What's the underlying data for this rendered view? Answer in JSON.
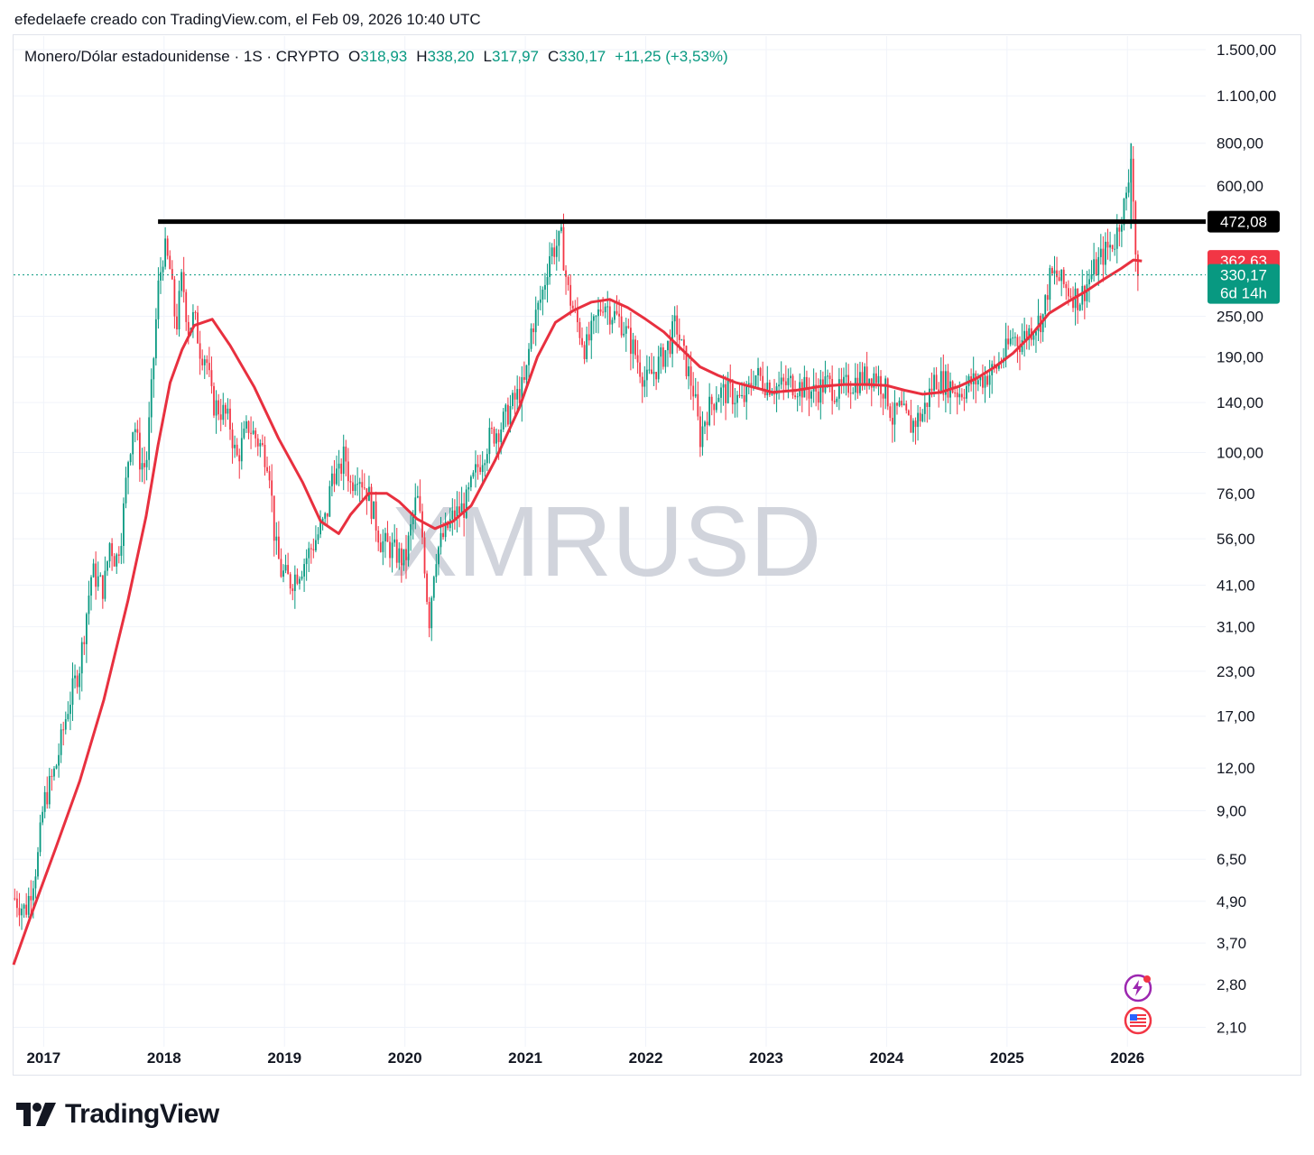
{
  "header": {
    "caption": "efedelaefe creado con TradingView.com, el Feb 09, 2026 10:40 UTC"
  },
  "legend": {
    "symbol": "Monero/Dólar estadounidense · 1S · CRYPTO",
    "open_label": "O",
    "open": "318,93",
    "high_label": "H",
    "high": "338,20",
    "low_label": "L",
    "low": "317,97",
    "close_label": "C",
    "close": "330,17",
    "change": "+11,25 (+3,53%)"
  },
  "watermark": "XMRUSD",
  "brand": {
    "name": "TradingView"
  },
  "colors": {
    "up": "#089981",
    "down": "#f23645",
    "ma": "#e8303f",
    "resistance": "#000000",
    "grid": "#f0f3fa",
    "watermark": "#d1d4dc"
  },
  "icons": [
    "lightning-icon",
    "us-flag-icon"
  ],
  "chart_data": {
    "type": "candlestick",
    "symbol": "XMRUSD",
    "interval": "1S",
    "scale": "log",
    "ylim": [
      1.9,
      1800
    ],
    "y_ticks": [
      "1.500,00",
      "1.100,00",
      "800,00",
      "600,00",
      "250,00",
      "190,00",
      "140,00",
      "100,00",
      "76,00",
      "56,00",
      "41,00",
      "31,00",
      "23,00",
      "17,00",
      "12,00",
      "9,00",
      "6,50",
      "4,90",
      "3,70",
      "2,80",
      "2,10"
    ],
    "y_tick_values": [
      1500,
      1100,
      800,
      600,
      250,
      190,
      140,
      100,
      76,
      56,
      41,
      31,
      23,
      17,
      12,
      9,
      6.5,
      4.9,
      3.7,
      2.8,
      2.1
    ],
    "x_ticks": [
      "2017",
      "2018",
      "2019",
      "2020",
      "2021",
      "2022",
      "2023",
      "2024",
      "2025",
      "2026"
    ],
    "x_tick_values": [
      2017.0,
      2018.0,
      2019.0,
      2020.0,
      2021.0,
      2022.0,
      2023.0,
      2024.0,
      2025.0,
      2026.0
    ],
    "xlim": [
      2016.75,
      2026.65
    ],
    "resistance_line": {
      "value": 472.08,
      "label": "472,08",
      "from": 2017.95,
      "to": 2026.65
    },
    "price_labels": [
      {
        "label": "362,63",
        "value": 362.63,
        "kind": "ma"
      },
      {
        "label": "330,17",
        "value": 330.17,
        "kind": "last",
        "sub": "6d 14h"
      }
    ],
    "last_price": 330.17,
    "price_path": [
      [
        2016.76,
        5.0
      ],
      [
        2016.85,
        4.6
      ],
      [
        2016.95,
        6.5
      ],
      [
        2017.0,
        9.5
      ],
      [
        2017.1,
        12
      ],
      [
        2017.2,
        18
      ],
      [
        2017.3,
        24
      ],
      [
        2017.4,
        45
      ],
      [
        2017.5,
        40
      ],
      [
        2017.55,
        55
      ],
      [
        2017.6,
        48
      ],
      [
        2017.65,
        60
      ],
      [
        2017.7,
        95
      ],
      [
        2017.75,
        125
      ],
      [
        2017.8,
        95
      ],
      [
        2017.85,
        90
      ],
      [
        2017.9,
        160
      ],
      [
        2017.95,
        300
      ],
      [
        2018.0,
        400
      ],
      [
        2018.05,
        340
      ],
      [
        2018.1,
        230
      ],
      [
        2018.15,
        330
      ],
      [
        2018.2,
        230
      ],
      [
        2018.25,
        250
      ],
      [
        2018.3,
        200
      ],
      [
        2018.35,
        190
      ],
      [
        2018.4,
        140
      ],
      [
        2018.5,
        130
      ],
      [
        2018.55,
        120
      ],
      [
        2018.6,
        95
      ],
      [
        2018.7,
        120
      ],
      [
        2018.8,
        105
      ],
      [
        2018.87,
        95
      ],
      [
        2018.92,
        55
      ],
      [
        2018.97,
        45
      ],
      [
        2019.05,
        42
      ],
      [
        2019.15,
        47
      ],
      [
        2019.25,
        55
      ],
      [
        2019.35,
        65
      ],
      [
        2019.4,
        90
      ],
      [
        2019.45,
        85
      ],
      [
        2019.5,
        100
      ],
      [
        2019.55,
        80
      ],
      [
        2019.6,
        90
      ],
      [
        2019.7,
        75
      ],
      [
        2019.8,
        55
      ],
      [
        2019.9,
        52
      ],
      [
        2020.0,
        48
      ],
      [
        2020.05,
        60
      ],
      [
        2020.1,
        75
      ],
      [
        2020.15,
        55
      ],
      [
        2020.2,
        32
      ],
      [
        2020.25,
        50
      ],
      [
        2020.3,
        55
      ],
      [
        2020.4,
        65
      ],
      [
        2020.5,
        70
      ],
      [
        2020.6,
        90
      ],
      [
        2020.7,
        110
      ],
      [
        2020.8,
        120
      ],
      [
        2020.9,
        140
      ],
      [
        2021.0,
        160
      ],
      [
        2021.05,
        230
      ],
      [
        2021.1,
        260
      ],
      [
        2021.15,
        300
      ],
      [
        2021.2,
        380
      ],
      [
        2021.3,
        420
      ],
      [
        2021.35,
        300
      ],
      [
        2021.4,
        260
      ],
      [
        2021.5,
        200
      ],
      [
        2021.6,
        250
      ],
      [
        2021.65,
        280
      ],
      [
        2021.7,
        260
      ],
      [
        2021.8,
        240
      ],
      [
        2021.9,
        200
      ],
      [
        2022.0,
        160
      ],
      [
        2022.1,
        180
      ],
      [
        2022.2,
        210
      ],
      [
        2022.25,
        240
      ],
      [
        2022.3,
        200
      ],
      [
        2022.4,
        150
      ],
      [
        2022.45,
        110
      ],
      [
        2022.5,
        130
      ],
      [
        2022.6,
        150
      ],
      [
        2022.7,
        150
      ],
      [
        2022.8,
        140
      ],
      [
        2022.85,
        150
      ],
      [
        2022.9,
        170
      ],
      [
        2023.0,
        160
      ],
      [
        2023.1,
        155
      ],
      [
        2023.2,
        160
      ],
      [
        2023.3,
        155
      ],
      [
        2023.4,
        150
      ],
      [
        2023.5,
        160
      ],
      [
        2023.6,
        150
      ],
      [
        2023.7,
        160
      ],
      [
        2023.8,
        165
      ],
      [
        2023.9,
        170
      ],
      [
        2024.0,
        150
      ],
      [
        2024.05,
        125
      ],
      [
        2024.1,
        135
      ],
      [
        2024.2,
        120
      ],
      [
        2024.3,
        130
      ],
      [
        2024.4,
        165
      ],
      [
        2024.5,
        160
      ],
      [
        2024.6,
        150
      ],
      [
        2024.7,
        160
      ],
      [
        2024.8,
        165
      ],
      [
        2024.9,
        175
      ],
      [
        2025.0,
        200
      ],
      [
        2025.05,
        220
      ],
      [
        2025.1,
        210
      ],
      [
        2025.2,
        230
      ],
      [
        2025.3,
        250
      ],
      [
        2025.35,
        320
      ],
      [
        2025.4,
        330
      ],
      [
        2025.5,
        300
      ],
      [
        2025.6,
        280
      ],
      [
        2025.7,
        330
      ],
      [
        2025.8,
        380
      ],
      [
        2025.9,
        420
      ],
      [
        2025.95,
        500
      ],
      [
        2026.0,
        560
      ],
      [
        2026.03,
        780
      ],
      [
        2026.06,
        450
      ],
      [
        2026.08,
        290
      ],
      [
        2026.1,
        330
      ]
    ],
    "ma_path": [
      [
        2016.75,
        3.2
      ],
      [
        2016.9,
        4.5
      ],
      [
        2017.1,
        7
      ],
      [
        2017.3,
        11
      ],
      [
        2017.5,
        19
      ],
      [
        2017.7,
        37
      ],
      [
        2017.85,
        65
      ],
      [
        2017.95,
        105
      ],
      [
        2018.05,
        160
      ],
      [
        2018.15,
        200
      ],
      [
        2018.25,
        235
      ],
      [
        2018.4,
        245
      ],
      [
        2018.55,
        205
      ],
      [
        2018.75,
        155
      ],
      [
        2018.95,
        110
      ],
      [
        2019.15,
        82
      ],
      [
        2019.3,
        63
      ],
      [
        2019.45,
        58
      ],
      [
        2019.55,
        66
      ],
      [
        2019.7,
        76
      ],
      [
        2019.85,
        76
      ],
      [
        2019.95,
        72
      ],
      [
        2020.1,
        64
      ],
      [
        2020.25,
        60
      ],
      [
        2020.4,
        63
      ],
      [
        2020.55,
        70
      ],
      [
        2020.75,
        95
      ],
      [
        2020.95,
        135
      ],
      [
        2021.1,
        190
      ],
      [
        2021.25,
        240
      ],
      [
        2021.4,
        260
      ],
      [
        2021.55,
        275
      ],
      [
        2021.7,
        280
      ],
      [
        2021.85,
        265
      ],
      [
        2022.0,
        245
      ],
      [
        2022.15,
        225
      ],
      [
        2022.3,
        200
      ],
      [
        2022.45,
        178
      ],
      [
        2022.6,
        168
      ],
      [
        2022.75,
        160
      ],
      [
        2022.9,
        155
      ],
      [
        2023.05,
        150
      ],
      [
        2023.25,
        152
      ],
      [
        2023.45,
        156
      ],
      [
        2023.65,
        158
      ],
      [
        2023.85,
        158
      ],
      [
        2024.0,
        157
      ],
      [
        2024.15,
        152
      ],
      [
        2024.3,
        148
      ],
      [
        2024.45,
        150
      ],
      [
        2024.6,
        156
      ],
      [
        2024.75,
        165
      ],
      [
        2024.9,
        178
      ],
      [
        2025.05,
        195
      ],
      [
        2025.2,
        220
      ],
      [
        2025.35,
        255
      ],
      [
        2025.5,
        275
      ],
      [
        2025.65,
        295
      ],
      [
        2025.8,
        320
      ],
      [
        2025.95,
        345
      ],
      [
        2026.05,
        365
      ],
      [
        2026.12,
        362.63
      ]
    ]
  }
}
